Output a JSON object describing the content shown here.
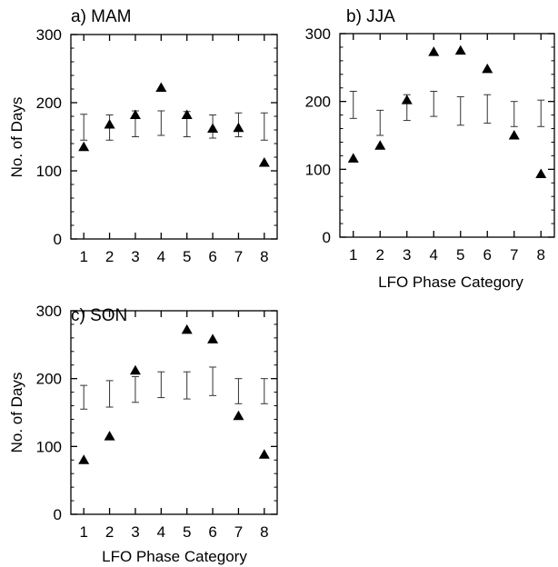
{
  "chart_data": [
    {
      "type": "scatter",
      "panel": "a",
      "title": "a) MAM",
      "xlabel": "",
      "ylabel": "No. of Days",
      "x": [
        1,
        2,
        3,
        4,
        5,
        6,
        7,
        8
      ],
      "x_ticks": [
        "1",
        "2",
        "3",
        "4",
        "5",
        "6",
        "7",
        "8"
      ],
      "y_ticks": [
        "0",
        "100",
        "200",
        "300"
      ],
      "ylim": [
        0,
        300
      ],
      "series": [
        {
          "marker": "triangle",
          "values": [
            135,
            168,
            182,
            222,
            182,
            162,
            163,
            112
          ]
        },
        {
          "marker": "errorbar",
          "low": [
            145,
            145,
            150,
            152,
            150,
            148,
            150,
            145
          ],
          "high": [
            183,
            182,
            188,
            188,
            187,
            182,
            185,
            185
          ]
        }
      ]
    },
    {
      "type": "scatter",
      "panel": "b",
      "title": "b) JJA",
      "xlabel": "LFO Phase Category",
      "ylabel": "",
      "x": [
        1,
        2,
        3,
        4,
        5,
        6,
        7,
        8
      ],
      "x_ticks": [
        "1",
        "2",
        "3",
        "4",
        "5",
        "6",
        "7",
        "8"
      ],
      "y_ticks": [
        "0",
        "100",
        "200",
        "300"
      ],
      "ylim": [
        0,
        300
      ],
      "series": [
        {
          "marker": "triangle",
          "values": [
            116,
            135,
            202,
            273,
            275,
            248,
            150,
            93
          ]
        },
        {
          "marker": "errorbar",
          "low": [
            175,
            150,
            172,
            178,
            165,
            168,
            163,
            163
          ],
          "high": [
            215,
            187,
            210,
            215,
            207,
            210,
            200,
            202
          ]
        }
      ]
    },
    {
      "type": "scatter",
      "panel": "c",
      "title": "c) SON",
      "xlabel": "LFO Phase Category",
      "ylabel": "No. of Days",
      "x": [
        1,
        2,
        3,
        4,
        5,
        6,
        7,
        8
      ],
      "x_ticks": [
        "1",
        "2",
        "3",
        "4",
        "5",
        "6",
        "7",
        "8"
      ],
      "y_ticks": [
        "0",
        "100",
        "200",
        "300"
      ],
      "ylim": [
        0,
        300
      ],
      "series": [
        {
          "marker": "triangle",
          "values": [
            80,
            115,
            212,
            null,
            272,
            258,
            145,
            88
          ]
        },
        {
          "marker": "errorbar",
          "low": [
            155,
            158,
            165,
            172,
            170,
            175,
            163,
            163
          ],
          "high": [
            190,
            197,
            203,
            210,
            210,
            217,
            200,
            200
          ]
        }
      ]
    }
  ]
}
